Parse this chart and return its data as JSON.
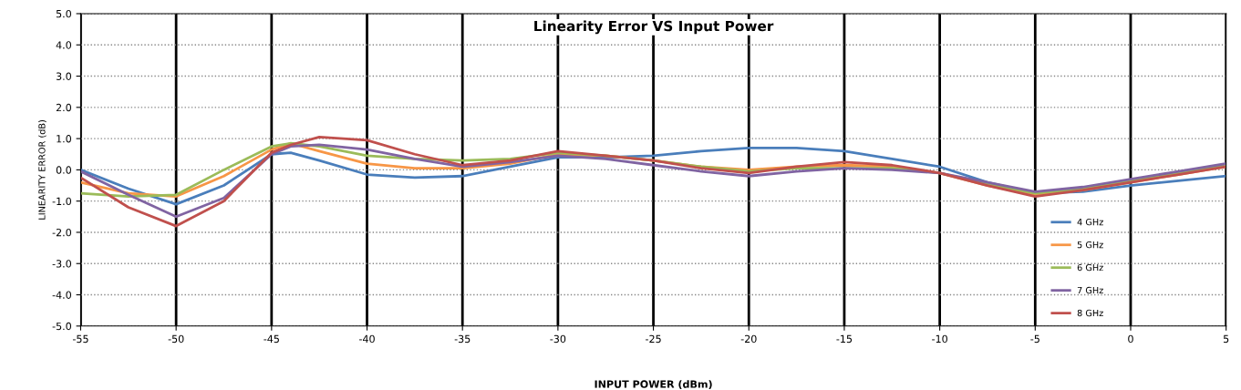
{
  "chart_data": {
    "type": "line",
    "title": "Linearity Error VS Input Power",
    "xlabel": "INPUT POWER (dBm)",
    "ylabel": "LINEARITY ERROR (dB)",
    "x": [
      -55,
      -52.5,
      -50,
      -47.5,
      -45,
      -44,
      -42.5,
      -40,
      -37.5,
      -35,
      -32.5,
      -30,
      -27.5,
      -25,
      -22.5,
      -20,
      -17.5,
      -15,
      -12.5,
      -10,
      -7.5,
      -5,
      -2.5,
      0,
      2.5,
      5
    ],
    "series": [
      {
        "name": "4 GHz",
        "color": "#4a7ebb",
        "values": [
          0.0,
          -0.6,
          -1.1,
          -0.5,
          0.5,
          0.55,
          0.3,
          -0.15,
          -0.25,
          -0.2,
          0.1,
          0.4,
          0.4,
          0.45,
          0.6,
          0.7,
          0.7,
          0.6,
          0.35,
          0.1,
          -0.4,
          -0.75,
          -0.7,
          -0.5,
          -0.35,
          -0.2
        ]
      },
      {
        "name": "5 GHz",
        "color": "#f79646",
        "values": [
          -0.4,
          -0.75,
          -0.85,
          -0.2,
          0.65,
          0.85,
          0.6,
          0.2,
          0.05,
          0.05,
          0.2,
          0.5,
          0.45,
          0.3,
          0.1,
          0.0,
          0.1,
          0.15,
          0.1,
          -0.1,
          -0.5,
          -0.8,
          -0.65,
          -0.4,
          -0.15,
          0.1
        ]
      },
      {
        "name": "6 GHz",
        "color": "#9bbb59",
        "values": [
          -0.75,
          -0.85,
          -0.8,
          0.0,
          0.75,
          0.85,
          0.75,
          0.45,
          0.35,
          0.3,
          0.35,
          0.55,
          0.45,
          0.3,
          0.1,
          -0.05,
          0.05,
          0.05,
          0.05,
          -0.1,
          -0.45,
          -0.75,
          -0.6,
          -0.35,
          -0.1,
          0.15
        ]
      },
      {
        "name": "7 GHz",
        "color": "#8064a2",
        "values": [
          -0.05,
          -0.8,
          -1.5,
          -0.9,
          0.5,
          0.75,
          0.8,
          0.65,
          0.35,
          0.1,
          0.25,
          0.45,
          0.35,
          0.15,
          -0.05,
          -0.2,
          -0.05,
          0.05,
          0.0,
          -0.1,
          -0.4,
          -0.7,
          -0.55,
          -0.3,
          -0.05,
          0.2
        ]
      },
      {
        "name": "8 GHz",
        "color": "#c0504d",
        "values": [
          -0.25,
          -1.2,
          -1.8,
          -1.0,
          0.55,
          0.8,
          1.05,
          0.95,
          0.5,
          0.15,
          0.3,
          0.6,
          0.45,
          0.3,
          0.05,
          -0.1,
          0.1,
          0.25,
          0.15,
          -0.1,
          -0.5,
          -0.85,
          -0.65,
          -0.4,
          -0.15,
          0.1
        ]
      }
    ],
    "xlim": [
      -55,
      5
    ],
    "xticks": [
      -55,
      -50,
      -45,
      -40,
      -35,
      -30,
      -25,
      -20,
      -15,
      -10,
      -5,
      0,
      5
    ],
    "ylim": [
      -5,
      5
    ],
    "yticks": [
      {
        "value": -5,
        "label": "-5.0"
      },
      {
        "value": -4,
        "label": "-4.0"
      },
      {
        "value": -3,
        "label": "-3.0"
      },
      {
        "value": -2,
        "label": "-2.0"
      },
      {
        "value": -1,
        "label": "-1.0"
      },
      {
        "value": 0,
        "label": "0.0"
      },
      {
        "value": 1,
        "label": "1.0"
      },
      {
        "value": 2,
        "label": "2.0"
      },
      {
        "value": 3,
        "label": "3.0"
      },
      {
        "value": 4,
        "label": "4.0"
      },
      {
        "value": 5,
        "label": "5.0"
      }
    ],
    "grid": true,
    "legend": "bottom right",
    "marker": "none",
    "line_style": "solid"
  }
}
